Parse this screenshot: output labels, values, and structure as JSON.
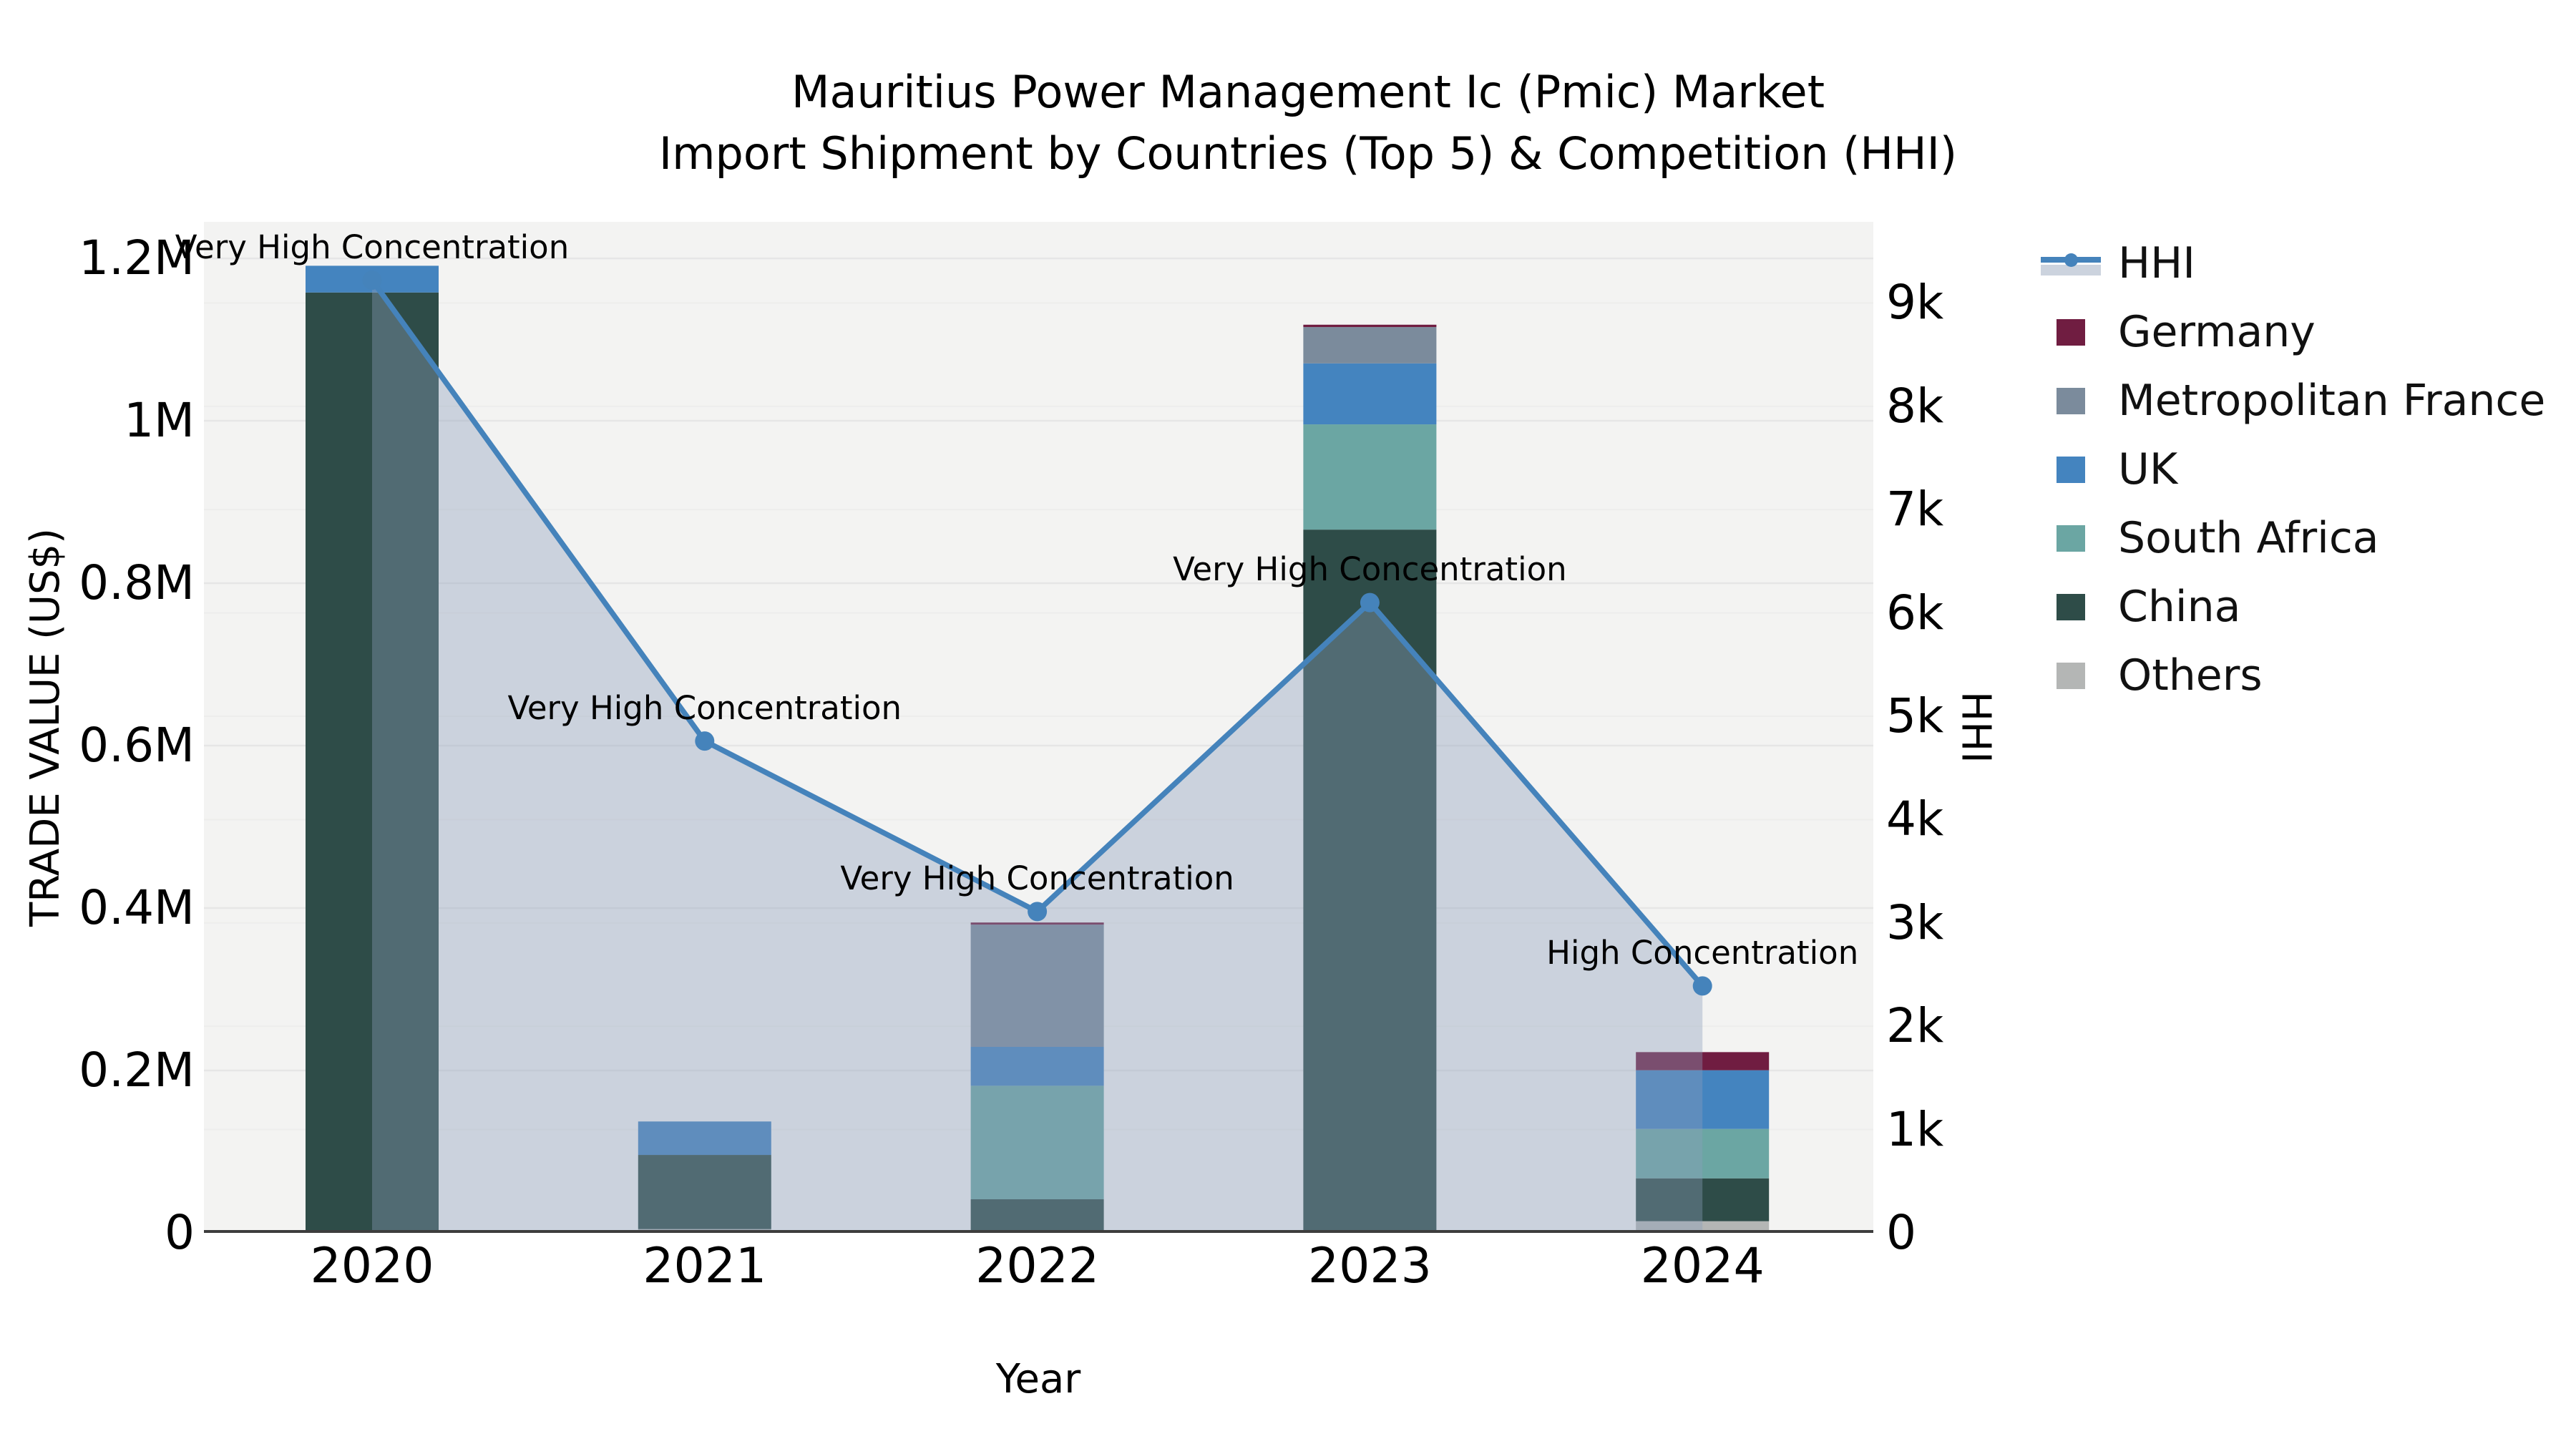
{
  "title": {
    "line1": "Mauritius Power Management Ic (Pmic) Market",
    "line2": "Import Shipment by Countries (Top 5) & Competition (HHI)"
  },
  "chart_data": {
    "type": "bar+line",
    "categories": [
      "2020",
      "2021",
      "2022",
      "2023",
      "2024"
    ],
    "bar_stack_order_note": "series listed bottom-to-top of the stack",
    "series": [
      {
        "name": "Others",
        "color": "#b4b6b5",
        "values": [
          0,
          4700,
          0,
          0,
          14400
        ]
      },
      {
        "name": "China",
        "color": "#2e4c48",
        "values": [
          1158000,
          91300,
          41400,
          866000,
          52800
        ]
      },
      {
        "name": "South Africa",
        "color": "#6ba6a3",
        "values": [
          0,
          0,
          139800,
          129600,
          60800
        ]
      },
      {
        "name": "UK",
        "color": "#4484bf",
        "values": [
          32900,
          41200,
          47900,
          75100,
          72300
        ]
      },
      {
        "name": "Metropolitan France",
        "color": "#7b8b9c",
        "values": [
          0,
          0,
          150500,
          44700,
          0
        ]
      },
      {
        "name": "Germany",
        "color": "#701d41",
        "values": [
          0,
          0,
          2600,
          2900,
          22300
        ]
      }
    ],
    "line_series": {
      "name": "HHI",
      "color": "#4583bb",
      "fill_color": "rgba(140,158,186,0.38)",
      "values": [
        9220,
        4760,
        3110,
        6100,
        2390
      ]
    },
    "annotations": [
      "Very High Concentration",
      "Very High Concentration",
      "Very High Concentration",
      "Very High Concentration",
      "High Concentration"
    ],
    "xlabel": "Year",
    "ylabel_left": "TRADE VALUE (US$)",
    "ylabel_right": "HHI",
    "y_left_ticks": [
      "0",
      "0.2M",
      "0.4M",
      "0.6M",
      "0.8M",
      "1M",
      "1.2M"
    ],
    "y_left_tick_values": [
      0,
      200000,
      400000,
      600000,
      800000,
      1000000,
      1200000
    ],
    "y_left_max": 1245000,
    "y_right_ticks": [
      "0",
      "1k",
      "2k",
      "3k",
      "4k",
      "5k",
      "6k",
      "7k",
      "8k",
      "9k"
    ],
    "y_right_tick_values": [
      0,
      1000,
      2000,
      3000,
      4000,
      5000,
      6000,
      7000,
      8000,
      9000
    ],
    "y_right_max": 9785,
    "grid": true,
    "legend_position": "right"
  },
  "legend": {
    "items": [
      {
        "label": "HHI",
        "symbol": "line"
      },
      {
        "label": "Germany",
        "symbol": "swatch"
      },
      {
        "label": "Metropolitan France",
        "symbol": "swatch"
      },
      {
        "label": "UK",
        "symbol": "swatch"
      },
      {
        "label": "South Africa",
        "symbol": "swatch"
      },
      {
        "label": "China",
        "symbol": "swatch"
      },
      {
        "label": "Others",
        "symbol": "swatch"
      }
    ]
  }
}
